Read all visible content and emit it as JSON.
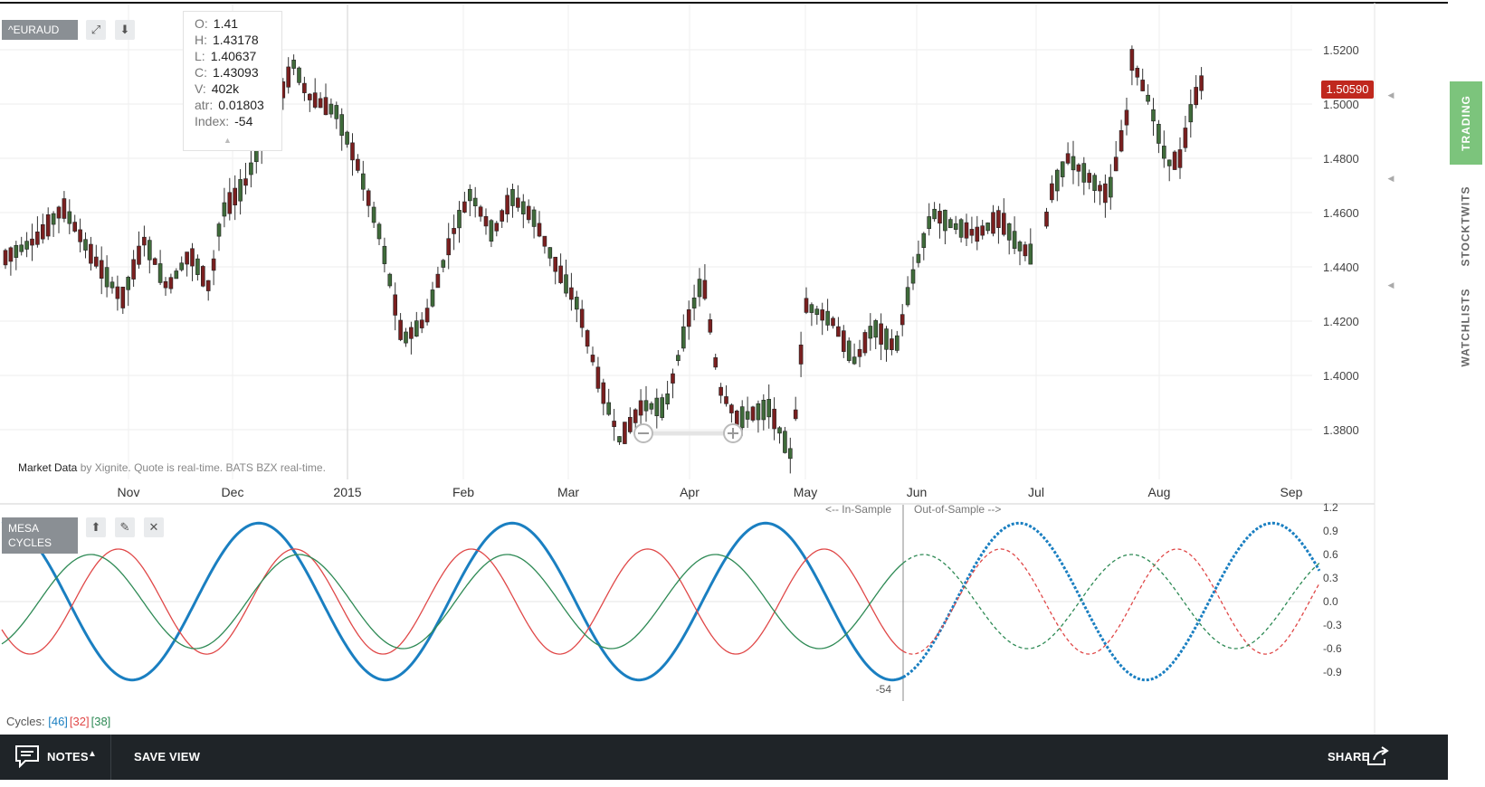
{
  "symbol": "^EURAUD",
  "ohlc_tooltip": [
    {
      "key": "O:",
      "value": "1.41"
    },
    {
      "key": "H:",
      "value": "1.43178"
    },
    {
      "key": "L:",
      "value": "1.40637"
    },
    {
      "key": "C:",
      "value": "1.43093"
    },
    {
      "key": "V:",
      "value": "402k"
    },
    {
      "key": "atr:",
      "value": "0.01803"
    },
    {
      "key": "Index:",
      "value": "-54"
    }
  ],
  "market_data_note": {
    "prefix": "Market Data",
    "suffix": "by Xignite. Quote is real-time. BATS BZX real-time."
  },
  "price_axis": [
    "1.5200",
    "1.5000",
    "1.4800",
    "1.4600",
    "1.4400",
    "1.4200",
    "1.4000",
    "1.3800"
  ],
  "last_price": "1.50590",
  "time_axis": [
    "Nov",
    "Dec",
    "2015",
    "Feb",
    "Mar",
    "Apr",
    "May",
    "Jun",
    "Jul",
    "Aug",
    "Sep"
  ],
  "indicator": {
    "title_line1": "MESA",
    "title_line2": "CYCLES",
    "in_sample_label": "<-- In-Sample",
    "out_sample_label": "Out-of-Sample -->",
    "axis": [
      "1.2",
      "0.9",
      "0.6",
      "0.3",
      "0.0",
      "-0.3",
      "-0.6",
      "-0.9"
    ],
    "index_label": "-54",
    "cycles_label": "Cycles:",
    "cycles": [
      {
        "text": "[46]",
        "color": "#1a7fc1"
      },
      {
        "text": "[32]",
        "color": "#e04848"
      },
      {
        "text": "[38]",
        "color": "#2e8a55"
      }
    ]
  },
  "right_tabs": [
    "TRADING",
    "STOCKTWITS",
    "WATCHLISTS"
  ],
  "footer": {
    "notes": "NOTES",
    "save_view": "SAVE VIEW",
    "share": "SHARE"
  },
  "colors": {
    "up": "#3f6b3a",
    "down": "#7a1f1f",
    "price_tag": "#c0281e",
    "trading_tab": "#7cc47c",
    "footer_bg": "#1f2428"
  },
  "chart_data": {
    "type": "candlestick",
    "y_range": [
      1.366,
      1.534
    ],
    "indicator_y_range": [
      -1.2,
      1.2
    ]
  }
}
